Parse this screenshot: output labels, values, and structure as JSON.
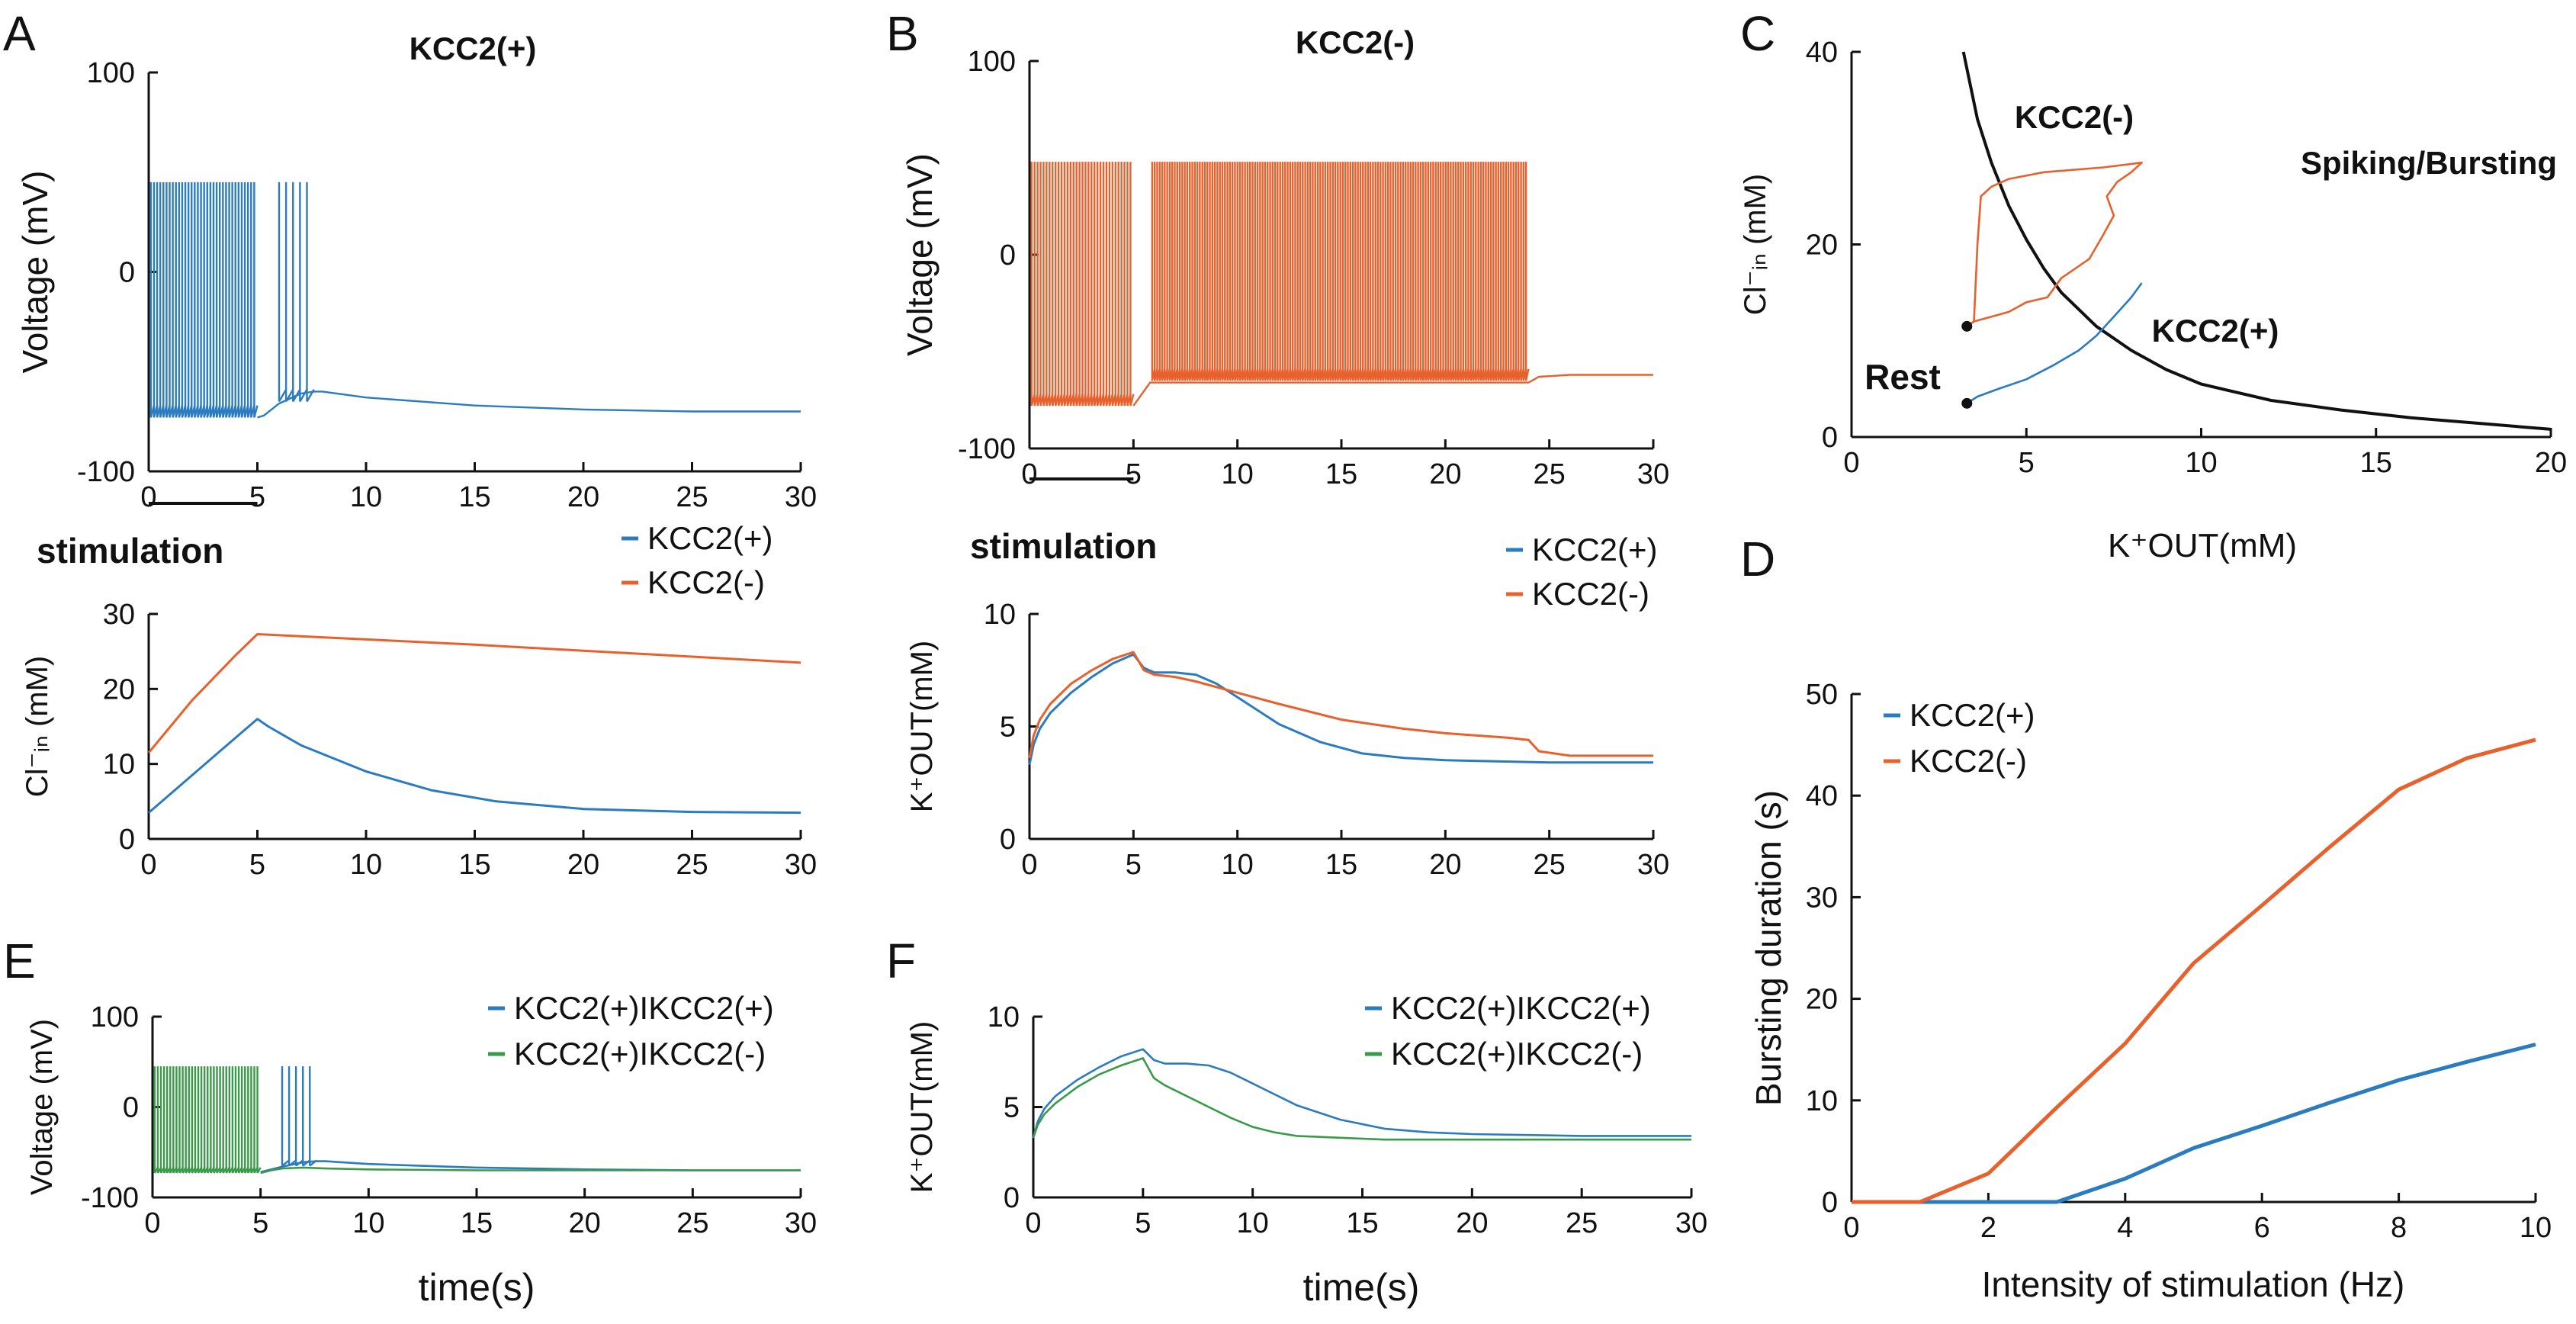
{
  "figure": {
    "panel_letters": [
      "A",
      "B",
      "C",
      "D",
      "E",
      "F"
    ],
    "stimulation_label": "stimulation",
    "colors": {
      "kcc2_plus": "#2b7bc0",
      "kcc2_minus": "#e8602c",
      "ikcc2_minus": "#3a9a4a",
      "black": "#111111"
    }
  },
  "chart_data": [
    {
      "id": "A_voltage",
      "type": "line",
      "title": "KCC2(+)",
      "xlabel": "",
      "ylabel": "Voltage (mV)",
      "xlim": [
        0,
        30
      ],
      "ylim": [
        -100,
        100
      ],
      "xticks": [
        0,
        5,
        10,
        15,
        20,
        25,
        30
      ],
      "yticks": [
        -100,
        0,
        100
      ],
      "spikes": [
        {
          "color": "kcc2_plus",
          "t_start": 0.1,
          "t_end": 5,
          "count": 34,
          "peak": 45,
          "trough": -73
        },
        {
          "color": "kcc2_plus",
          "t_start": 6,
          "t_end": 7.6,
          "count": 5,
          "peak": 45,
          "trough": -65
        }
      ],
      "series": [
        {
          "color": "kcc2_plus",
          "x": [
            5,
            5.3,
            6,
            7,
            7.6,
            8,
            10,
            15,
            20,
            25,
            30
          ],
          "y": [
            -73,
            -72,
            -66,
            -61,
            -60,
            -60,
            -63,
            -67,
            -69,
            -70,
            -70
          ]
        }
      ]
    },
    {
      "id": "A_chloride",
      "type": "line",
      "xlabel": "",
      "ylabel": "Cl⁻ᵢₙ (mM)",
      "xlim": [
        0,
        30
      ],
      "ylim": [
        0,
        30
      ],
      "xticks": [
        0,
        5,
        10,
        15,
        20,
        25,
        30
      ],
      "yticks": [
        0,
        10,
        20,
        30
      ],
      "legend": [
        "KCC2(+)",
        "KCC2(-)"
      ],
      "series": [
        {
          "name": "KCC2(+)",
          "color": "kcc2_plus",
          "x": [
            0,
            1,
            2,
            3,
            4,
            5,
            5.5,
            7,
            10,
            13,
            16,
            20,
            25,
            30
          ],
          "y": [
            3.5,
            6,
            8.5,
            11,
            13.5,
            16,
            15,
            12.5,
            9,
            6.5,
            5,
            4,
            3.6,
            3.5
          ]
        },
        {
          "name": "KCC2(-)",
          "color": "kcc2_minus",
          "x": [
            0,
            1,
            2,
            3,
            4,
            5,
            10,
            15,
            20,
            25,
            30
          ],
          "y": [
            11.5,
            15,
            18.5,
            21.5,
            24.5,
            27.3,
            26.6,
            25.9,
            25.1,
            24.3,
            23.5
          ]
        }
      ]
    },
    {
      "id": "B_voltage",
      "type": "line",
      "title": "KCC2(-)",
      "xlabel": "",
      "ylabel": "Voltage (mV)",
      "xlim": [
        0,
        30
      ],
      "ylim": [
        -100,
        100
      ],
      "xticks": [
        0,
        5,
        10,
        15,
        20,
        25,
        30
      ],
      "yticks": [
        -100,
        0,
        100
      ],
      "spikes": [
        {
          "color": "kcc2_minus",
          "t_start": 0.1,
          "t_end": 5,
          "count": 34,
          "peak": 48,
          "trough": -78
        },
        {
          "color": "kcc2_minus",
          "t_start": 5.9,
          "t_end": 24,
          "count": 150,
          "peak": 48,
          "trough": -65
        }
      ],
      "series": [
        {
          "color": "kcc2_minus",
          "x": [
            5,
            5.8,
            24,
            24.5,
            26,
            30
          ],
          "y": [
            -78,
            -66,
            -66,
            -63,
            -62,
            -62
          ]
        }
      ]
    },
    {
      "id": "B_potassium",
      "type": "line",
      "xlabel": "",
      "ylabel": "K⁺OUT(mM)",
      "xlim": [
        0,
        30
      ],
      "ylim": [
        0,
        10
      ],
      "xticks": [
        0,
        5,
        10,
        15,
        20,
        25,
        30
      ],
      "yticks": [
        0,
        5,
        10
      ],
      "legend": [
        "KCC2(+)",
        "KCC2(-)"
      ],
      "series": [
        {
          "name": "KCC2(+)",
          "color": "kcc2_plus",
          "x": [
            0,
            0.2,
            0.5,
            1,
            2,
            3,
            4,
            5,
            5.5,
            6,
            7,
            8,
            9,
            10,
            12,
            14,
            16,
            18,
            20,
            25,
            30
          ],
          "y": [
            3.3,
            4.2,
            4.9,
            5.6,
            6.5,
            7.2,
            7.8,
            8.2,
            7.6,
            7.4,
            7.4,
            7.3,
            6.9,
            6.3,
            5.1,
            4.3,
            3.8,
            3.6,
            3.5,
            3.4,
            3.4
          ]
        },
        {
          "name": "KCC2(-)",
          "color": "kcc2_minus",
          "x": [
            0,
            0.2,
            0.5,
            1,
            2,
            3,
            4,
            5,
            5.5,
            6,
            7,
            8,
            10,
            12,
            15,
            18,
            20,
            23,
            24,
            24.5,
            26,
            30
          ],
          "y": [
            3.6,
            4.6,
            5.3,
            6,
            6.9,
            7.5,
            8,
            8.3,
            7.5,
            7.3,
            7.2,
            7,
            6.5,
            6,
            5.3,
            4.9,
            4.7,
            4.5,
            4.4,
            3.9,
            3.7,
            3.7
          ]
        }
      ]
    },
    {
      "id": "C_phase",
      "type": "line",
      "xlabel": "K⁺OUT(mM)",
      "ylabel": "Cl⁻ᵢₙ (mM)",
      "xlim": [
        0,
        20
      ],
      "ylim": [
        0,
        40
      ],
      "xticks": [
        0,
        5,
        10,
        15,
        20
      ],
      "yticks": [
        0,
        20,
        40
      ],
      "annotations": [
        "KCC2(-)",
        "Spiking/Bursting",
        "KCC2(+)",
        "Rest"
      ],
      "boundary": {
        "color": "black",
        "x": [
          3.2,
          3.6,
          4,
          4.5,
          5,
          5.5,
          6,
          7,
          8,
          9,
          10,
          12,
          14,
          16,
          18,
          20
        ],
        "y": [
          40,
          33,
          28.5,
          24,
          20.5,
          17.5,
          15,
          11.5,
          9,
          7,
          5.5,
          3.8,
          2.8,
          2,
          1.4,
          0.8
        ]
      },
      "series": [
        {
          "name": "KCC2(+)",
          "color": "kcc2_plus",
          "x": [
            3.3,
            3.6,
            4.2,
            5,
            5.8,
            6.5,
            7,
            7.5,
            8,
            8.3,
            8.3
          ],
          "y": [
            3.5,
            4.2,
            5,
            6,
            7.5,
            9,
            10.5,
            12.5,
            14.5,
            16,
            16
          ]
        },
        {
          "name": "KCC2(-)",
          "color": "kcc2_minus",
          "x": [
            3.3,
            3.5,
            4,
            4.5,
            5,
            5.6,
            6,
            6.8,
            7.2,
            7.5,
            7.3,
            7.6,
            8,
            8.3,
            8.3,
            7.2,
            5.5,
            4.5,
            4,
            3.7,
            3.6,
            3.5
          ],
          "y": [
            11.5,
            12,
            12.5,
            13,
            14,
            14.5,
            16.5,
            18.5,
            21,
            23,
            25,
            26.5,
            27.5,
            28.5,
            28.5,
            28,
            27.5,
            26.8,
            26,
            25,
            20,
            12
          ]
        }
      ],
      "points": [
        {
          "x": 3.3,
          "y": 11.5
        },
        {
          "x": 3.3,
          "y": 3.5
        }
      ]
    },
    {
      "id": "D_duration",
      "type": "line",
      "xlabel": "Intensity of stimulation (Hz)",
      "ylabel": "Bursting duration (s)",
      "xlim": [
        0,
        10
      ],
      "ylim": [
        0,
        50
      ],
      "xticks": [
        0,
        2,
        4,
        6,
        8,
        10
      ],
      "yticks": [
        0,
        10,
        20,
        30,
        40,
        50
      ],
      "legend": [
        "KCC2(+)",
        "KCC2(-)"
      ],
      "series": [
        {
          "name": "KCC2(+)",
          "color": "kcc2_plus",
          "x": [
            0,
            1,
            2,
            3,
            4,
            5,
            6,
            7,
            8,
            9,
            10
          ],
          "y": [
            0,
            0,
            0,
            0,
            2.3,
            5.3,
            7.5,
            9.8,
            12,
            13.8,
            15.5
          ]
        },
        {
          "name": "KCC2(-)",
          "color": "kcc2_minus",
          "x": [
            0,
            1,
            2,
            3,
            4,
            5,
            6,
            7,
            8,
            9,
            10
          ],
          "y": [
            0,
            0,
            2.8,
            9.3,
            15.6,
            23.5,
            29.2,
            35,
            40.6,
            43.7,
            45.5
          ]
        }
      ]
    },
    {
      "id": "E_voltage",
      "type": "line",
      "xlabel": "time(s)",
      "ylabel": "Voltage (mV)",
      "xlim": [
        0,
        30
      ],
      "ylim": [
        -100,
        100
      ],
      "xticks": [
        0,
        5,
        10,
        15,
        20,
        25,
        30
      ],
      "yticks": [
        -100,
        0,
        100
      ],
      "legend": [
        "KCC2(+)IKCC2(+)",
        "KCC2(+)IKCC2(-)"
      ],
      "spikes": [
        {
          "color": "kcc2_plus",
          "t_start": 6,
          "t_end": 7.6,
          "count": 5,
          "peak": 45,
          "trough": -65
        },
        {
          "color": "ikcc2_minus",
          "t_start": 0.1,
          "t_end": 5,
          "count": 34,
          "peak": 45,
          "trough": -73
        }
      ],
      "series": [
        {
          "name": "KCC2(+)IKCC2(+)",
          "color": "kcc2_plus",
          "x": [
            5,
            6,
            7,
            7.6,
            8,
            10,
            15,
            20,
            25,
            30
          ],
          "y": [
            -72,
            -66,
            -61,
            -60,
            -60,
            -63,
            -67,
            -69,
            -70,
            -70
          ]
        },
        {
          "name": "KCC2(+)IKCC2(-)",
          "color": "ikcc2_minus",
          "x": [
            5,
            5.5,
            6,
            7,
            8,
            10,
            15,
            20,
            25,
            30
          ],
          "y": [
            -73,
            -70,
            -68,
            -67,
            -68,
            -69,
            -70,
            -70,
            -70,
            -70
          ]
        }
      ]
    },
    {
      "id": "F_potassium",
      "type": "line",
      "xlabel": "time(s)",
      "ylabel": "K⁺OUT(mM)",
      "xlim": [
        0,
        30
      ],
      "ylim": [
        0,
        10
      ],
      "xticks": [
        0,
        5,
        10,
        15,
        20,
        25,
        30
      ],
      "yticks": [
        0,
        5,
        10
      ],
      "legend": [
        "KCC2(+)IKCC2(+)",
        "KCC2(+)IKCC2(-)"
      ],
      "series": [
        {
          "name": "KCC2(+)IKCC2(+)",
          "color": "kcc2_plus",
          "x": [
            0,
            0.2,
            0.5,
            1,
            2,
            3,
            4,
            5,
            5.5,
            6,
            7,
            8,
            9,
            10,
            12,
            14,
            16,
            18,
            20,
            25,
            30
          ],
          "y": [
            3.3,
            4.2,
            4.9,
            5.6,
            6.5,
            7.2,
            7.8,
            8.2,
            7.6,
            7.4,
            7.4,
            7.3,
            6.9,
            6.3,
            5.1,
            4.3,
            3.8,
            3.6,
            3.5,
            3.4,
            3.4
          ]
        },
        {
          "name": "KCC2(+)IKCC2(-)",
          "color": "ikcc2_minus",
          "x": [
            0,
            0.2,
            0.5,
            1,
            2,
            3,
            4,
            5,
            5.5,
            6,
            7,
            8,
            9,
            10,
            11,
            12,
            14,
            16,
            20,
            25,
            30
          ],
          "y": [
            3.3,
            4,
            4.6,
            5.2,
            6.1,
            6.8,
            7.3,
            7.7,
            6.6,
            6.2,
            5.6,
            5,
            4.4,
            3.9,
            3.6,
            3.4,
            3.3,
            3.2,
            3.2,
            3.2,
            3.2
          ]
        }
      ]
    }
  ]
}
